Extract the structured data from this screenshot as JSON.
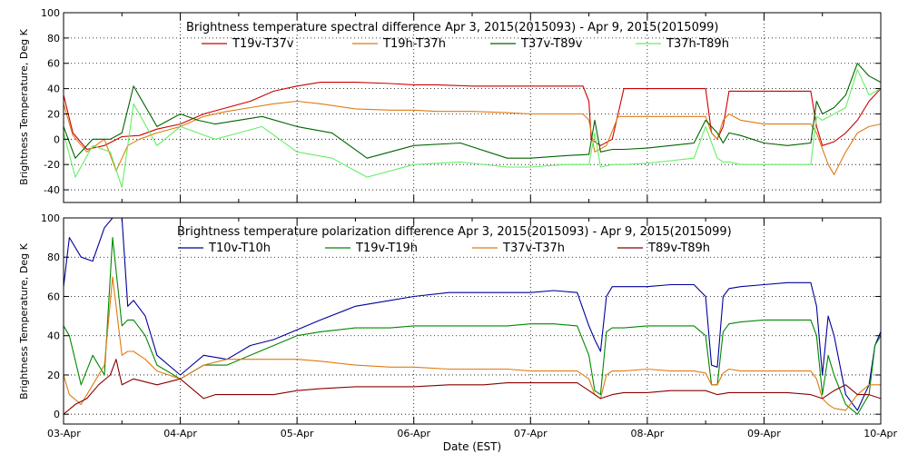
{
  "chart_data": [
    {
      "type": "line",
      "title": "Brightness temperature spectral difference     Apr  3, 2015(2015093) - Apr  9, 2015(2015099)",
      "ylabel": "Brightness Temperature, Deg K",
      "xlabel": "",
      "xlim": [
        0,
        7
      ],
      "ylim": [
        -50,
        100
      ],
      "yticks": [
        -40,
        -20,
        0,
        20,
        40,
        60,
        80,
        100
      ],
      "grid": true,
      "legend_position": "top",
      "series": [
        {
          "name": "T19v-T37v",
          "color": "#cc0000",
          "x": [
            0,
            0.08,
            0.2,
            0.35,
            0.5,
            0.65,
            0.8,
            1.0,
            1.2,
            1.4,
            1.6,
            1.8,
            2.0,
            2.2,
            2.5,
            2.8,
            3.0,
            3.2,
            3.5,
            3.8,
            4.0,
            4.2,
            4.45,
            4.5,
            4.52,
            4.6,
            4.7,
            4.8,
            5.0,
            5.2,
            5.4,
            5.5,
            5.55,
            5.6,
            5.65,
            5.7,
            5.8,
            6.0,
            6.2,
            6.4,
            6.45,
            6.5,
            6.6,
            6.7,
            6.8,
            6.9,
            7.0
          ],
          "y": [
            35,
            5,
            -8,
            -5,
            2,
            3,
            8,
            12,
            20,
            25,
            30,
            38,
            42,
            45,
            45,
            44,
            43,
            43,
            42,
            42,
            42,
            42,
            42,
            30,
            0,
            -5,
            0,
            40,
            40,
            40,
            40,
            40,
            5,
            0,
            10,
            38,
            38,
            38,
            38,
            38,
            10,
            -5,
            -2,
            5,
            15,
            30,
            40
          ]
        },
        {
          "name": "T19h-T37h",
          "color": "#e07a10",
          "x": [
            0,
            0.08,
            0.2,
            0.35,
            0.45,
            0.55,
            0.65,
            0.8,
            1.0,
            1.2,
            1.4,
            1.6,
            1.8,
            2.0,
            2.2,
            2.5,
            2.8,
            3.0,
            3.2,
            3.5,
            3.8,
            4.0,
            4.2,
            4.45,
            4.5,
            4.55,
            4.65,
            4.75,
            4.85,
            5.0,
            5.2,
            5.4,
            5.5,
            5.55,
            5.6,
            5.65,
            5.7,
            5.8,
            6.0,
            6.2,
            6.4,
            6.45,
            6.55,
            6.6,
            6.7,
            6.8,
            6.9,
            7.0
          ],
          "y": [
            28,
            3,
            -10,
            0,
            -25,
            -5,
            0,
            5,
            10,
            18,
            22,
            25,
            28,
            30,
            28,
            24,
            23,
            23,
            22,
            22,
            21,
            20,
            20,
            20,
            15,
            -10,
            -5,
            18,
            18,
            18,
            18,
            18,
            18,
            5,
            0,
            15,
            20,
            15,
            12,
            12,
            12,
            5,
            -20,
            -28,
            -10,
            5,
            10,
            12
          ]
        },
        {
          "name": "T37v-T89v",
          "color": "#006400",
          "x": [
            0,
            0.1,
            0.25,
            0.4,
            0.5,
            0.6,
            0.8,
            1.0,
            1.15,
            1.3,
            1.5,
            1.7,
            2.0,
            2.3,
            2.6,
            3.0,
            3.4,
            3.8,
            4.0,
            4.3,
            4.5,
            4.55,
            4.6,
            4.7,
            4.8,
            5.0,
            5.2,
            5.4,
            5.5,
            5.6,
            5.65,
            5.7,
            5.8,
            6.0,
            6.2,
            6.4,
            6.45,
            6.5,
            6.6,
            6.7,
            6.8,
            6.9,
            7.0
          ],
          "y": [
            10,
            -15,
            0,
            0,
            5,
            42,
            10,
            20,
            15,
            12,
            15,
            18,
            10,
            5,
            -15,
            -5,
            -3,
            -15,
            -15,
            -13,
            -12,
            15,
            -10,
            -8,
            -8,
            -7,
            -5,
            -3,
            15,
            5,
            -3,
            5,
            3,
            -3,
            -5,
            -3,
            30,
            20,
            25,
            35,
            60,
            50,
            45
          ]
        },
        {
          "name": "T37h-T89h",
          "color": "#66ee66",
          "x": [
            0,
            0.1,
            0.25,
            0.4,
            0.5,
            0.6,
            0.8,
            1.0,
            1.15,
            1.3,
            1.5,
            1.7,
            2.0,
            2.3,
            2.6,
            3.0,
            3.4,
            3.8,
            4.0,
            4.3,
            4.5,
            4.55,
            4.6,
            4.7,
            4.8,
            5.0,
            5.2,
            5.4,
            5.5,
            5.6,
            5.65,
            5.7,
            5.8,
            6.0,
            6.2,
            6.4,
            6.45,
            6.5,
            6.6,
            6.7,
            6.8,
            6.9,
            7.0
          ],
          "y": [
            5,
            -30,
            -5,
            -10,
            -38,
            28,
            -5,
            10,
            5,
            0,
            5,
            10,
            -10,
            -15,
            -30,
            -20,
            -18,
            -22,
            -22,
            -20,
            -20,
            5,
            -22,
            -20,
            -20,
            -19,
            -17,
            -15,
            10,
            -15,
            -18,
            -18,
            -20,
            -20,
            -20,
            -20,
            18,
            15,
            20,
            25,
            55,
            35,
            40
          ]
        }
      ]
    },
    {
      "type": "line",
      "title": "Brightness temperature polarization difference     Apr  3, 2015(2015093) - Apr  9, 2015(2015099)",
      "ylabel": "Brightness Temperature, Deg K",
      "xlabel": "Date (EST)",
      "xlim": [
        0,
        7
      ],
      "ylim": [
        -5,
        100
      ],
      "yticks": [
        0,
        20,
        40,
        60,
        80,
        100
      ],
      "xticks": [
        "03-Apr",
        "04-Apr",
        "05-Apr",
        "06-Apr",
        "07-Apr",
        "08-Apr",
        "09-Apr",
        "10-Apr"
      ],
      "grid": true,
      "legend_position": "top",
      "series": [
        {
          "name": "T10v-T10h",
          "color": "#000099",
          "x": [
            0,
            0.05,
            0.15,
            0.25,
            0.35,
            0.42,
            0.5,
            0.55,
            0.6,
            0.7,
            0.8,
            1.0,
            1.2,
            1.4,
            1.6,
            1.8,
            2.0,
            2.2,
            2.5,
            2.8,
            3.0,
            3.3,
            3.6,
            3.8,
            4.0,
            4.2,
            4.4,
            4.5,
            4.55,
            4.6,
            4.65,
            4.7,
            4.8,
            5.0,
            5.2,
            5.4,
            5.5,
            5.55,
            5.6,
            5.65,
            5.7,
            5.8,
            6.0,
            6.2,
            6.4,
            6.45,
            6.5,
            6.55,
            6.6,
            6.7,
            6.8,
            6.9,
            6.95,
            7.0
          ],
          "y": [
            65,
            90,
            80,
            78,
            95,
            100,
            100,
            55,
            58,
            50,
            30,
            20,
            30,
            28,
            35,
            38,
            43,
            48,
            55,
            58,
            60,
            62,
            62,
            62,
            62,
            63,
            62,
            45,
            38,
            32,
            60,
            65,
            65,
            65,
            66,
            66,
            60,
            25,
            24,
            60,
            64,
            65,
            66,
            67,
            67,
            55,
            20,
            50,
            40,
            10,
            2,
            15,
            35,
            42
          ]
        },
        {
          "name": "T19v-T19h",
          "color": "#008800",
          "x": [
            0,
            0.05,
            0.15,
            0.25,
            0.35,
            0.42,
            0.5,
            0.55,
            0.6,
            0.7,
            0.8,
            1.0,
            1.2,
            1.4,
            1.6,
            1.8,
            2.0,
            2.2,
            2.5,
            2.8,
            3.0,
            3.3,
            3.6,
            3.8,
            4.0,
            4.2,
            4.4,
            4.5,
            4.55,
            4.6,
            4.65,
            4.7,
            4.8,
            5.0,
            5.2,
            5.4,
            5.5,
            5.55,
            5.6,
            5.65,
            5.7,
            5.8,
            6.0,
            6.2,
            6.4,
            6.45,
            6.5,
            6.55,
            6.6,
            6.7,
            6.8,
            6.9,
            6.95,
            7.0
          ],
          "y": [
            45,
            40,
            15,
            30,
            20,
            90,
            45,
            48,
            48,
            40,
            25,
            18,
            25,
            25,
            30,
            35,
            40,
            42,
            44,
            44,
            45,
            45,
            45,
            45,
            46,
            46,
            45,
            30,
            12,
            10,
            42,
            44,
            44,
            45,
            45,
            45,
            40,
            15,
            15,
            42,
            46,
            47,
            48,
            48,
            48,
            40,
            10,
            30,
            20,
            5,
            0,
            10,
            35,
            40
          ]
        },
        {
          "name": "T37v-T37h",
          "color": "#e07a10",
          "x": [
            0,
            0.05,
            0.15,
            0.25,
            0.35,
            0.42,
            0.5,
            0.55,
            0.6,
            0.7,
            0.8,
            1.0,
            1.2,
            1.4,
            1.6,
            1.8,
            2.0,
            2.2,
            2.5,
            2.8,
            3.0,
            3.3,
            3.6,
            3.8,
            4.0,
            4.2,
            4.4,
            4.5,
            4.55,
            4.6,
            4.65,
            4.7,
            4.8,
            5.0,
            5.2,
            5.4,
            5.5,
            5.55,
            5.6,
            5.65,
            5.7,
            5.8,
            6.0,
            6.2,
            6.4,
            6.45,
            6.5,
            6.55,
            6.6,
            6.7,
            6.8,
            6.9,
            6.95,
            7.0
          ],
          "y": [
            20,
            10,
            5,
            15,
            25,
            70,
            30,
            32,
            32,
            28,
            22,
            18,
            25,
            28,
            28,
            28,
            28,
            27,
            25,
            24,
            24,
            23,
            23,
            23,
            22,
            22,
            22,
            18,
            10,
            8,
            20,
            22,
            22,
            23,
            22,
            22,
            21,
            15,
            15,
            21,
            23,
            22,
            22,
            22,
            22,
            18,
            8,
            5,
            3,
            2,
            10,
            15,
            15,
            15
          ]
        },
        {
          "name": "T89v-T89h",
          "color": "#880000",
          "x": [
            0,
            0.1,
            0.2,
            0.3,
            0.4,
            0.45,
            0.5,
            0.6,
            0.8,
            1.0,
            1.2,
            1.3,
            1.5,
            1.8,
            2.0,
            2.2,
            2.5,
            2.8,
            3.0,
            3.3,
            3.6,
            3.8,
            4.0,
            4.2,
            4.4,
            4.5,
            4.6,
            4.7,
            4.8,
            5.0,
            5.2,
            5.4,
            5.5,
            5.6,
            5.7,
            5.8,
            6.0,
            6.2,
            6.4,
            6.5,
            6.6,
            6.7,
            6.8,
            6.9,
            7.0
          ],
          "y": [
            0,
            5,
            8,
            15,
            20,
            28,
            15,
            18,
            15,
            18,
            8,
            10,
            10,
            10,
            12,
            13,
            14,
            14,
            14,
            15,
            15,
            16,
            16,
            16,
            16,
            12,
            8,
            10,
            11,
            11,
            12,
            12,
            12,
            10,
            11,
            11,
            11,
            11,
            10,
            8,
            12,
            15,
            10,
            10,
            8
          ]
        }
      ]
    }
  ]
}
